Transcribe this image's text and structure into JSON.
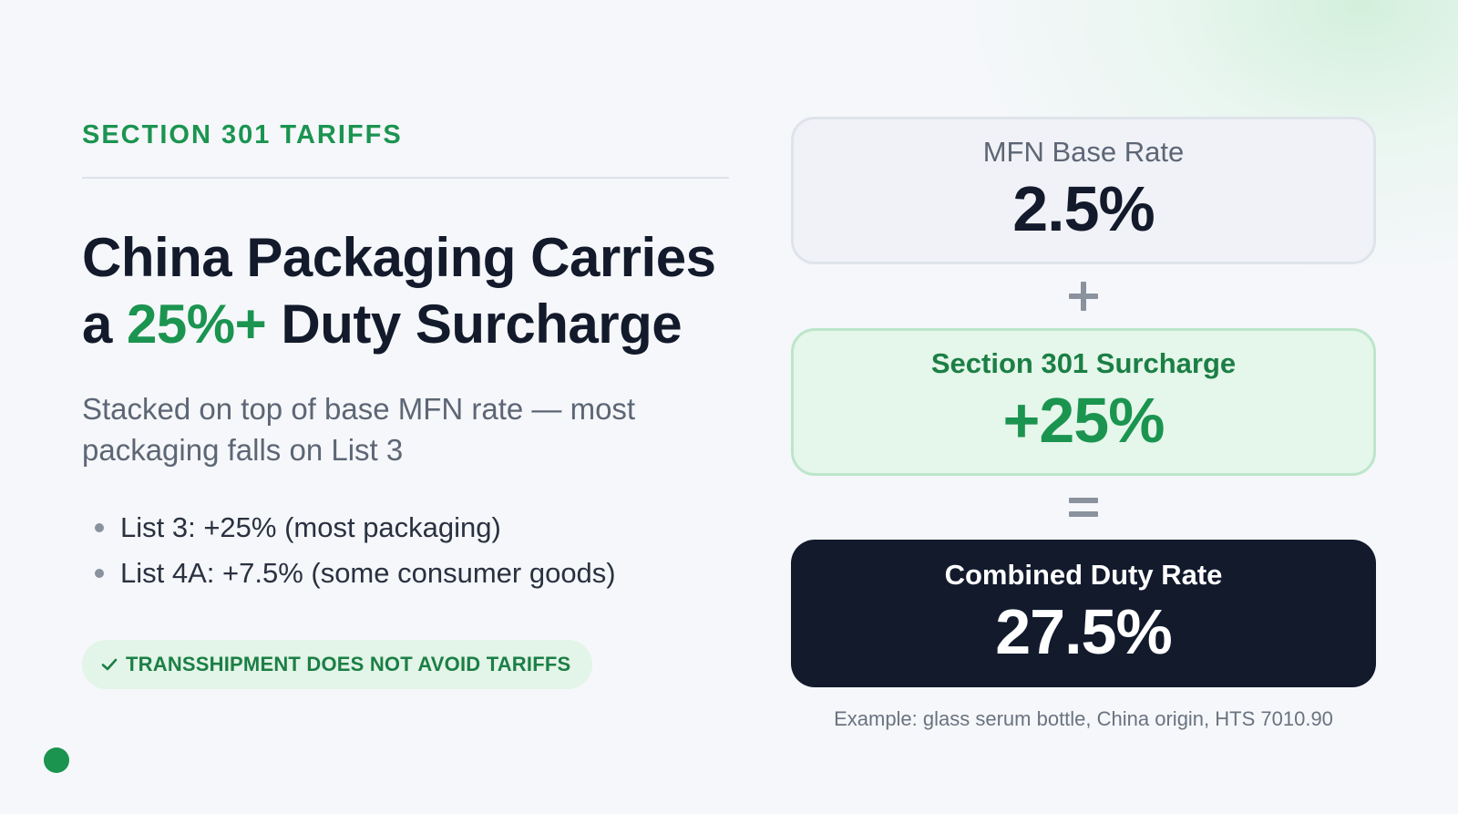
{
  "colors": {
    "accent_green": "#1b9450",
    "dark_navy": "#121a2c",
    "muted_gray": "#5d6675"
  },
  "section": {
    "eyebrow": "SECTION 301 TARIFFS"
  },
  "headline": {
    "line1": "China Packaging Carries",
    "line2_prefix": "a ",
    "line2_accent": "25%+",
    "line2_suffix": " Duty Surcharge"
  },
  "subtitle": "Stacked on top of base MFN rate — most packaging falls on List 3",
  "bullets": [
    "List 3: +25% (most packaging)",
    "List 4A: +7.5% (some consumer goods)"
  ],
  "badge": {
    "icon": "check-icon",
    "text": "TRANSSHIPMENT DOES NOT AVOID TARIFFS"
  },
  "calculation": {
    "base": {
      "label": "MFN Base Rate",
      "value": "2.5%"
    },
    "plus_operator": "plus-icon",
    "surcharge": {
      "label": "Section 301 Surcharge",
      "value": "+25%"
    },
    "equals_operator": "equals-icon",
    "combined": {
      "label": "Combined Duty Rate",
      "value": "27.5%"
    },
    "footnote": "Example: glass serum bottle, China origin, HTS 7010.90"
  }
}
